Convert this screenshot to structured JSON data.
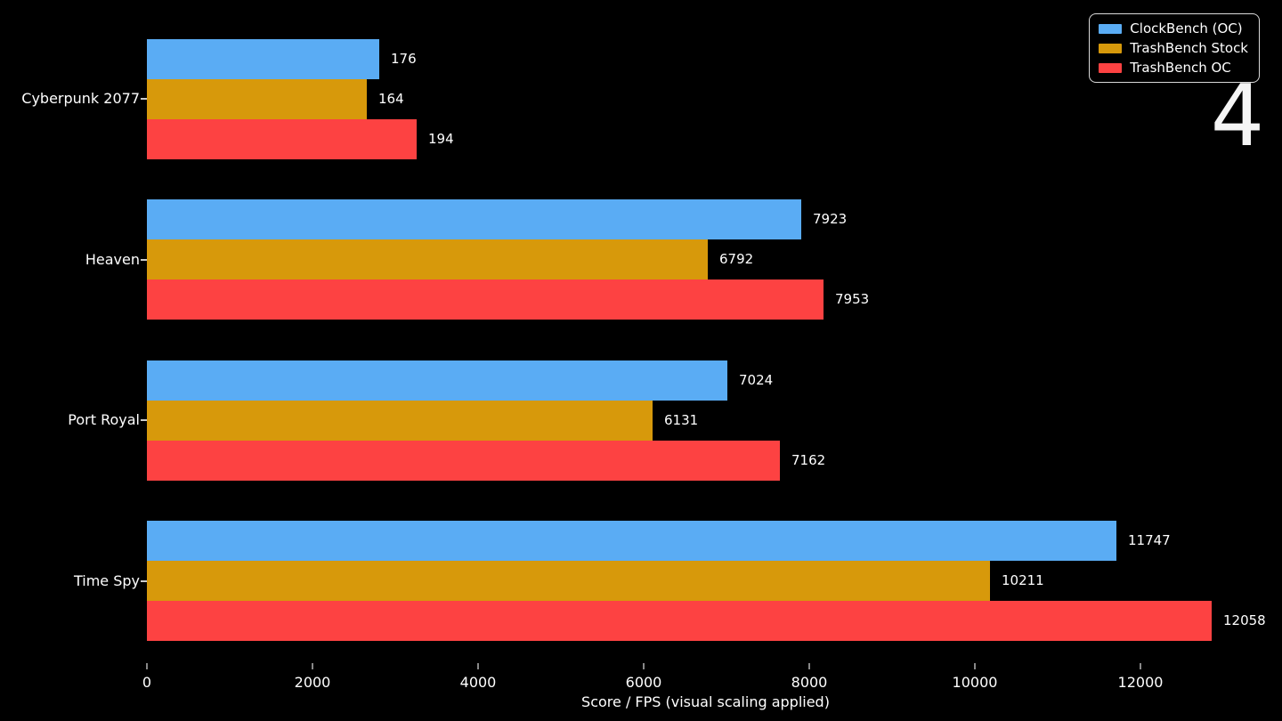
{
  "page": {
    "background_color": "#000000",
    "slide_number": "4"
  },
  "legend": {
    "position": "upper right",
    "items": [
      {
        "label": "ClockBench (OC)",
        "color": "#5aacf4"
      },
      {
        "label": "TrashBench Stock",
        "color": "#d7990b"
      },
      {
        "label": "TrashBench OC",
        "color": "#fd4242"
      }
    ]
  },
  "chart_data": {
    "type": "bar",
    "orientation": "horizontal",
    "title": "",
    "xlabel": "Score / FPS (visual scaling applied)",
    "ylabel": "",
    "categories": [
      "Cyberpunk 2077",
      "Heaven",
      "Port Royal",
      "Time Spy"
    ],
    "series": [
      {
        "name": "ClockBench (OC)",
        "color": "#5aacf4",
        "values": [
          176,
          7923,
          7024,
          11747
        ],
        "value_labels": [
          "176",
          "7923",
          "7024",
          "11747"
        ],
        "display_units": [
          2806,
          7903,
          7011,
          11710
        ]
      },
      {
        "name": "TrashBench Stock",
        "color": "#d7990b",
        "values": [
          164,
          6792,
          6131,
          10211
        ],
        "value_labels": [
          "164",
          "6792",
          "6131",
          "10211"
        ],
        "display_units": [
          2656,
          6774,
          6108,
          10183
        ]
      },
      {
        "name": "TrashBench OC",
        "color": "#fd4242",
        "values": [
          194,
          7953,
          7162,
          12058
        ],
        "value_labels": [
          "194",
          "7953",
          "7162",
          "12058"
        ],
        "display_units": [
          3258,
          8172,
          7645,
          12860
        ]
      }
    ],
    "x_ticks": [
      "0",
      "2000",
      "4000",
      "6000",
      "8000",
      "10000",
      "12000"
    ],
    "x_tick_values": [
      0,
      2000,
      4000,
      6000,
      8000,
      10000,
      12000
    ],
    "xlim": [
      0,
      13500
    ],
    "grid": false,
    "legend_position": "upper right"
  }
}
